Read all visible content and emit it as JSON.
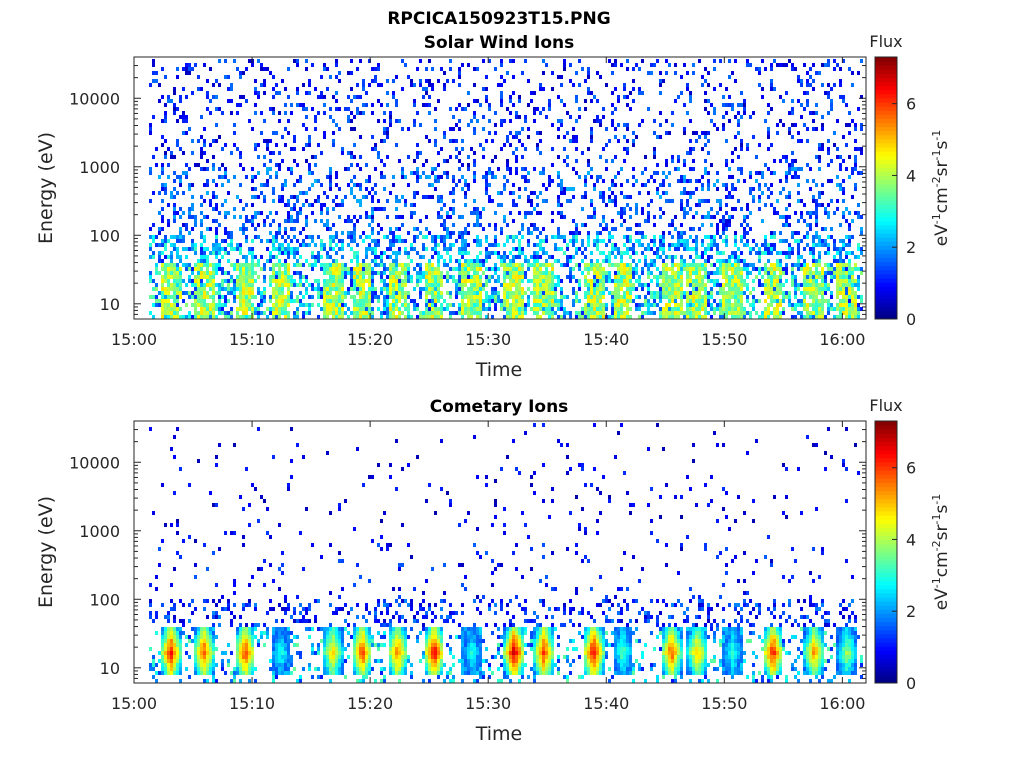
{
  "figure": {
    "title": "RPCICA150923T15.PNG"
  },
  "chart_data": [
    {
      "type": "heatmap",
      "title": "Solar Wind Ions",
      "xlabel": "Time",
      "ylabel": "Energy (eV)",
      "y_scale": "log",
      "xlim": [
        "15:00",
        "16:02"
      ],
      "ylim": [
        6,
        40000
      ],
      "x_ticks": [
        "15:00",
        "15:10",
        "15:20",
        "15:30",
        "15:40",
        "15:50",
        "16:00"
      ],
      "y_ticks": [
        10,
        100,
        1000,
        10000
      ],
      "y_tick_labels": [
        "10",
        "100",
        "1000",
        "10000"
      ],
      "colorbar": {
        "title": "Flux",
        "label": "eV-1cm-2sr-1s-1",
        "range": [
          0,
          7.3
        ],
        "ticks": [
          0,
          2,
          4,
          6
        ],
        "tick_labels": [
          "0",
          "2",
          "4",
          "6"
        ],
        "colormap": "jet"
      },
      "bursts_min": [
        3.0,
        5.8,
        9.3,
        12.3,
        16.7,
        19.2,
        22.2,
        25.3,
        28.5,
        32.1,
        34.6,
        38.8,
        41.3,
        45.4,
        47.6,
        50.6,
        54.0,
        57.5,
        60.3
      ],
      "description_levels": {
        "background_flux": [
          0.5,
          2.0
        ],
        "low_energy_band_flux": [
          1.5,
          5.0
        ],
        "peak_flux": 4.5
      }
    },
    {
      "type": "heatmap",
      "title": "Cometary Ions",
      "xlabel": "Time",
      "ylabel": "Energy (eV)",
      "y_scale": "log",
      "xlim": [
        "15:00",
        "16:02"
      ],
      "ylim": [
        6,
        40000
      ],
      "x_ticks": [
        "15:00",
        "15:10",
        "15:20",
        "15:30",
        "15:40",
        "15:50",
        "16:00"
      ],
      "y_ticks": [
        10,
        100,
        1000,
        10000
      ],
      "y_tick_labels": [
        "10",
        "100",
        "1000",
        "10000"
      ],
      "colorbar": {
        "title": "Flux",
        "label": "eV-1cm-2sr-1s-1",
        "range": [
          0,
          7.3
        ],
        "ticks": [
          0,
          2,
          4,
          6
        ],
        "tick_labels": [
          "0",
          "2",
          "4",
          "6"
        ],
        "colormap": "jet"
      },
      "bursts_min": [
        3.0,
        5.8,
        9.3,
        12.3,
        16.7,
        19.2,
        22.2,
        25.3,
        28.5,
        32.1,
        34.6,
        38.8,
        41.3,
        45.4,
        47.6,
        50.6,
        54.0,
        57.5,
        60.3
      ],
      "burst_peak_flux": [
        6.5,
        6.0,
        6.2,
        3.0,
        5.0,
        6.2,
        5.8,
        6.8,
        3.0,
        7.0,
        6.3,
        6.8,
        3.5,
        6.0,
        5.2,
        3.2,
        6.5,
        5.5,
        4.0
      ],
      "burst_energy_range_eV": [
        8,
        35
      ]
    }
  ]
}
